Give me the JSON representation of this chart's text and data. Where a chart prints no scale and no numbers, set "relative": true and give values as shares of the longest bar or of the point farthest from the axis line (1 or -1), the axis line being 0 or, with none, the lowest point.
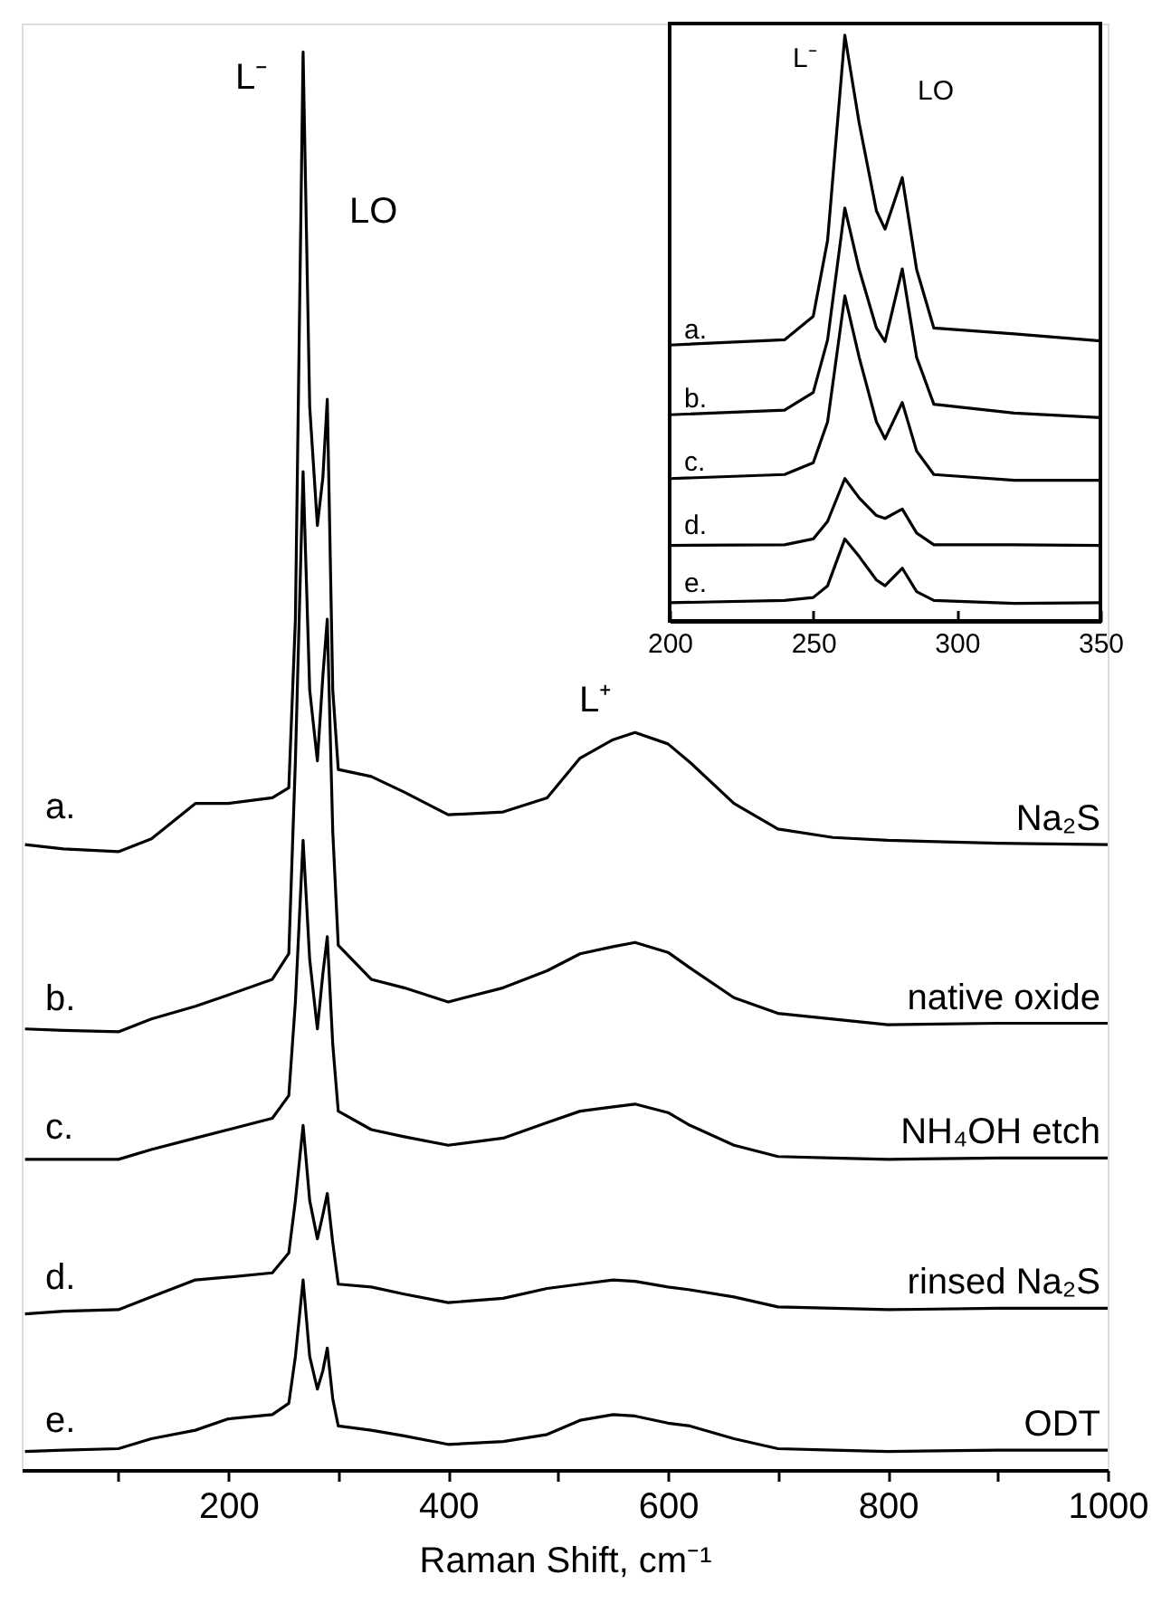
{
  "chart_data": [
    {
      "type": "line",
      "relative": true,
      "tick_labels": "x",
      "xlabel": "Raman Shift, cm⁻¹",
      "xlim": [
        12,
        1000
      ],
      "xticks": [
        {
          "value": 100,
          "label": null
        },
        200,
        {
          "value": 300,
          "label": null
        },
        400,
        {
          "value": 500,
          "label": null
        },
        600,
        {
          "value": 700,
          "label": null
        },
        800,
        {
          "value": 900,
          "label": null
        },
        1000
      ],
      "x": [
        15,
        50,
        100,
        130,
        170,
        200,
        240,
        255,
        261,
        268,
        274,
        281,
        286,
        290,
        295,
        300,
        330,
        360,
        400,
        450,
        490,
        520,
        550,
        570,
        600,
        620,
        660,
        700,
        750,
        800,
        900,
        1000
      ],
      "series": [
        {
          "name": "Na₂S",
          "color": "#000000",
          "values": [
            0.441,
            0.438,
            0.436,
            0.445,
            0.47,
            0.47,
            0.474,
            0.481,
            0.6,
            1.0,
            0.75,
            0.666,
            0.7,
            0.755,
            0.55,
            0.494,
            0.489,
            0.478,
            0.462,
            0.464,
            0.474,
            0.502,
            0.515,
            0.52,
            0.512,
            0.499,
            0.47,
            0.452,
            0.446,
            0.444,
            0.442,
            0.441
          ]
        },
        {
          "name": "native oxide",
          "color": "#000000",
          "values": [
            0.311,
            0.31,
            0.309,
            0.318,
            0.327,
            0.335,
            0.346,
            0.364,
            0.5,
            0.704,
            0.55,
            0.5,
            0.56,
            0.6,
            0.45,
            0.37,
            0.346,
            0.34,
            0.33,
            0.34,
            0.352,
            0.364,
            0.369,
            0.372,
            0.365,
            0.354,
            0.333,
            0.322,
            0.318,
            0.314,
            0.315,
            0.315
          ]
        },
        {
          "name": "NH₄OH etch",
          "color": "#000000",
          "values": [
            0.219,
            0.219,
            0.219,
            0.226,
            0.234,
            0.24,
            0.248,
            0.264,
            0.33,
            0.444,
            0.36,
            0.311,
            0.35,
            0.376,
            0.3,
            0.253,
            0.24,
            0.235,
            0.229,
            0.234,
            0.245,
            0.253,
            0.256,
            0.258,
            0.252,
            0.243,
            0.229,
            0.221,
            0.22,
            0.219,
            0.22,
            0.22
          ]
        },
        {
          "name": "rinsed Na₂S",
          "color": "#000000",
          "values": [
            0.11,
            0.112,
            0.113,
            0.122,
            0.134,
            0.136,
            0.139,
            0.153,
            0.19,
            0.243,
            0.19,
            0.163,
            0.18,
            0.195,
            0.16,
            0.131,
            0.129,
            0.124,
            0.118,
            0.121,
            0.128,
            0.131,
            0.134,
            0.133,
            0.129,
            0.127,
            0.122,
            0.115,
            0.114,
            0.113,
            0.114,
            0.114
          ]
        },
        {
          "name": "ODT",
          "color": "#000000",
          "values": [
            0.013,
            0.014,
            0.015,
            0.022,
            0.028,
            0.036,
            0.039,
            0.047,
            0.08,
            0.134,
            0.08,
            0.057,
            0.07,
            0.086,
            0.05,
            0.031,
            0.028,
            0.024,
            0.018,
            0.02,
            0.025,
            0.035,
            0.039,
            0.038,
            0.033,
            0.031,
            0.022,
            0.015,
            0.014,
            0.013,
            0.014,
            0.014
          ]
        }
      ],
      "annotations": [
        "L⁻",
        "LO",
        "L⁺",
        "a.",
        "b.",
        "c.",
        "d.",
        "e."
      ]
    },
    {
      "type": "line",
      "relative": true,
      "tick_labels": "x",
      "xlim": [
        200,
        350
      ],
      "xticks": [
        200,
        250,
        300,
        350
      ],
      "x": [
        200,
        240,
        250,
        255,
        261,
        266,
        272,
        275,
        281,
        286,
        292,
        320,
        350
      ],
      "series": [
        {
          "color": "#000000",
          "values": [
            0.471,
            0.48,
            0.52,
            0.65,
            1.0,
            0.85,
            0.7,
            0.669,
            0.757,
            0.6,
            0.5,
            0.49,
            0.478
          ]
        },
        {
          "color": "#000000",
          "values": [
            0.352,
            0.36,
            0.39,
            0.48,
            0.705,
            0.6,
            0.5,
            0.477,
            0.601,
            0.45,
            0.37,
            0.355,
            0.347
          ]
        },
        {
          "color": "#000000",
          "values": [
            0.243,
            0.25,
            0.27,
            0.34,
            0.555,
            0.45,
            0.34,
            0.311,
            0.373,
            0.29,
            0.25,
            0.24,
            0.24
          ]
        },
        {
          "color": "#000000",
          "values": [
            0.129,
            0.13,
            0.14,
            0.17,
            0.243,
            0.21,
            0.18,
            0.175,
            0.191,
            0.15,
            0.13,
            0.13,
            0.129
          ]
        },
        {
          "color": "#000000",
          "values": [
            0.031,
            0.035,
            0.04,
            0.06,
            0.14,
            0.11,
            0.07,
            0.06,
            0.09,
            0.05,
            0.035,
            0.03,
            0.031
          ]
        }
      ],
      "annotations": [
        "L⁻",
        "LO",
        "a.",
        "b.",
        "c.",
        "d.",
        "e."
      ]
    }
  ]
}
